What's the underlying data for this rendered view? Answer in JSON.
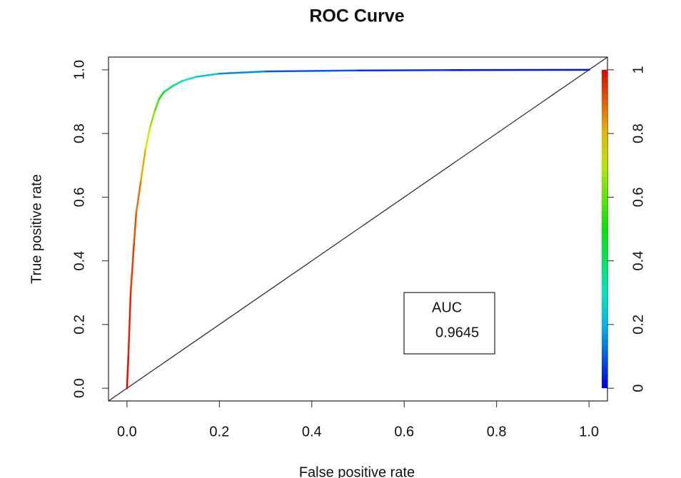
{
  "chart_data": {
    "type": "line",
    "title": "ROC Curve",
    "x_label": "False positive rate",
    "y_label": "True positive rate",
    "x": [
      0,
      0.003,
      0.008,
      0.015,
      0.02,
      0.03,
      0.04,
      0.05,
      0.06,
      0.07,
      0.08,
      0.1,
      0.12,
      0.15,
      0.2,
      0.3,
      0.5,
      0.7,
      1
    ],
    "values": [
      0,
      0.1,
      0.3,
      0.45,
      0.55,
      0.65,
      0.75,
      0.82,
      0.87,
      0.91,
      0.93,
      0.95,
      0.965,
      0.978,
      0.988,
      0.995,
      0.998,
      0.999,
      1
    ],
    "cutoffs": [
      1,
      0.98,
      0.95,
      0.92,
      0.9,
      0.85,
      0.78,
      0.7,
      0.62,
      0.53,
      0.45,
      0.38,
      0.3,
      0.24,
      0.18,
      0.12,
      0.07,
      0.04,
      0
    ],
    "colormap": "rainbow",
    "xlim": [
      -0.04,
      1.04
    ],
    "ylim": [
      -0.04,
      1.04
    ],
    "xticks": [
      {
        "value": 0,
        "label": "0.0"
      },
      0.2,
      0.4,
      0.6,
      0.8,
      {
        "value": 1,
        "label": "1.0"
      }
    ],
    "yticks": [
      {
        "value": 0,
        "label": "0.0"
      },
      0.2,
      0.4,
      0.6,
      0.8,
      {
        "value": 1,
        "label": "1.0"
      }
    ],
    "colorbar": {
      "lim": [
        0,
        1
      ],
      "ticks": [
        0,
        0.2,
        0.4,
        0.6,
        0.8,
        1
      ]
    },
    "annotation": {
      "title": "AUC",
      "value": 0.9645
    }
  }
}
